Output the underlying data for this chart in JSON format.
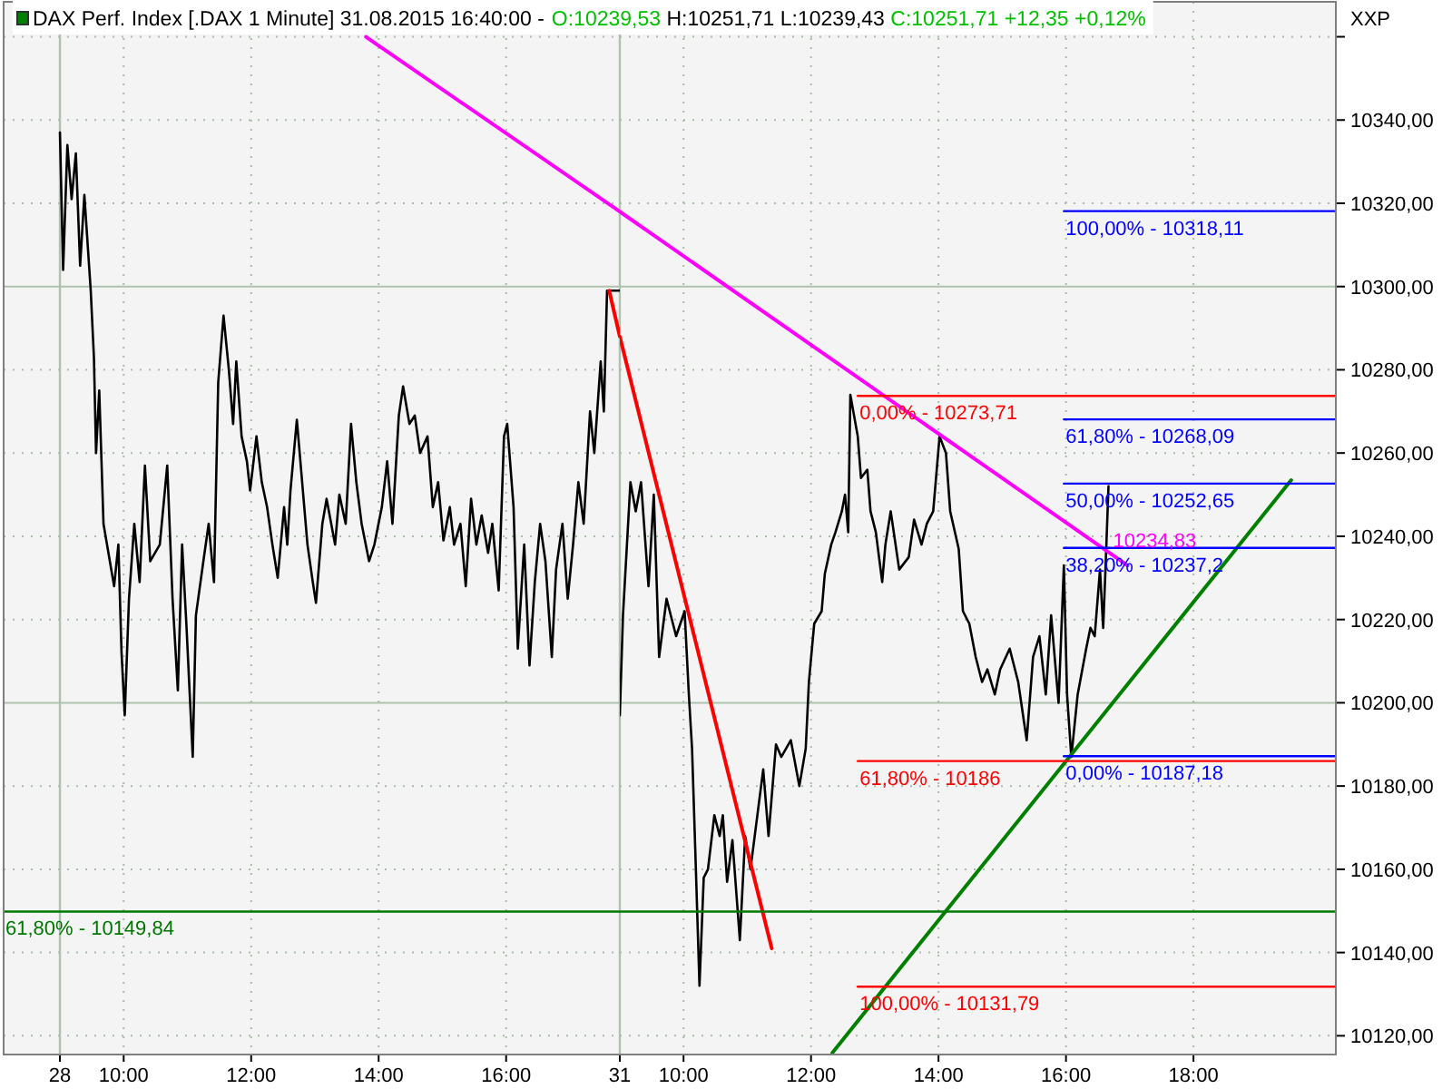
{
  "chart_data": [
    {
      "type": "other",
      "title": "DAX Perf. Index [.DAX 1 Minute] 31.08.2015 16:40:00 -",
      "subtitle": "O:10239,53 H:10251,71 L:10239,43 C:10251,71 +12,35 +0,12%"
    },
    {
      "type": "line",
      "xlim": [
        "2015-08-28T08:07",
        "2015-08-28T17:47"
      ],
      "ylim": [
        10115.5,
        10368.4
      ],
      "xticks": [
        {
          "value": "2015-08-28T09:00",
          "label": "28"
        },
        {
          "value": "2015-08-28T10:00",
          "label": "10:00"
        },
        {
          "value": "2015-08-28T12:00",
          "label": "12:00"
        },
        {
          "value": "2015-08-28T14:00",
          "label": "14:00"
        },
        {
          "value": "2015-08-28T16:00",
          "label": "16:00"
        }
      ],
      "yticks": [
        10120,
        10140,
        10160,
        10180,
        10200,
        10220,
        10240,
        10260,
        10280,
        10300,
        10320,
        10340,
        10360
      ],
      "tick_labels": "x",
      "grid": true,
      "ref_lines": [
        {
          "axis": "x",
          "value": "2015-08-28T09:00",
          "color": "#aec2ae"
        }
      ],
      "series": [
        {
          "color": "#000000",
          "x": [
            "2015-08-28T09:00",
            "2015-08-28T09:03",
            "2015-08-28T09:07",
            "2015-08-28T09:11",
            "2015-08-28T09:15",
            "2015-08-28T09:19",
            "2015-08-28T09:23",
            "2015-08-28T09:29",
            "2015-08-28T09:32",
            "2015-08-28T09:34",
            "2015-08-28T09:37",
            "2015-08-28T09:41",
            "2015-08-28T09:51",
            "2015-08-28T09:55",
            "2015-08-28T09:58",
            "2015-08-28T10:01",
            "2015-08-28T10:05",
            "2015-08-28T10:10",
            "2015-08-28T10:15",
            "2015-08-28T10:20",
            "2015-08-28T10:25",
            "2015-08-28T10:34",
            "2015-08-28T10:41",
            "2015-08-28T10:46",
            "2015-08-28T10:51",
            "2015-08-28T10:55",
            "2015-08-28T10:59",
            "2015-08-28T11:05",
            "2015-08-28T11:08",
            "2015-08-28T11:15",
            "2015-08-28T11:20",
            "2015-08-28T11:25",
            "2015-08-28T11:29",
            "2015-08-28T11:34",
            "2015-08-28T11:39",
            "2015-08-28T11:43",
            "2015-08-28T11:46",
            "2015-08-28T11:51",
            "2015-08-28T11:56",
            "2015-08-28T11:59",
            "2015-08-28T12:05",
            "2015-08-28T12:10",
            "2015-08-28T12:15",
            "2015-08-28T12:20",
            "2015-08-28T12:25",
            "2015-08-28T12:31",
            "2015-08-28T12:34",
            "2015-08-28T12:37",
            "2015-08-28T12:43",
            "2015-08-28T12:47",
            "2015-08-28T12:53",
            "2015-08-28T12:58",
            "2015-08-28T13:01",
            "2015-08-28T13:07",
            "2015-08-28T13:11",
            "2015-08-28T13:19",
            "2015-08-28T13:23",
            "2015-08-28T13:29",
            "2015-08-28T13:34",
            "2015-08-28T13:39",
            "2015-08-28T13:44",
            "2015-08-28T13:51",
            "2015-08-28T13:56",
            "2015-08-28T14:03",
            "2015-08-28T14:08",
            "2015-08-28T14:13",
            "2015-08-28T14:19",
            "2015-08-28T14:23",
            "2015-08-28T14:29",
            "2015-08-28T14:34",
            "2015-08-28T14:39",
            "2015-08-28T14:46",
            "2015-08-28T14:51",
            "2015-08-28T14:56",
            "2015-08-28T15:01",
            "2015-08-28T15:07",
            "2015-08-28T15:11",
            "2015-08-28T15:17",
            "2015-08-28T15:22",
            "2015-08-28T15:27",
            "2015-08-28T15:32",
            "2015-08-28T15:37",
            "2015-08-28T15:43",
            "2015-08-28T15:47",
            "2015-08-28T15:53",
            "2015-08-28T15:58",
            "2015-08-28T16:01",
            "2015-08-28T16:07",
            "2015-08-28T16:11",
            "2015-08-28T16:17",
            "2015-08-28T16:22",
            "2015-08-28T16:27",
            "2015-08-28T16:32",
            "2015-08-28T16:37",
            "2015-08-28T16:43",
            "2015-08-28T16:47",
            "2015-08-28T16:53",
            "2015-08-28T16:58",
            "2015-08-28T17:03",
            "2015-08-28T17:08",
            "2015-08-28T17:13",
            "2015-08-28T17:19",
            "2015-08-28T17:23",
            "2015-08-28T17:29",
            "2015-08-28T17:32",
            "2015-08-28T17:35",
            "2015-08-28T17:47"
          ],
          "values": [
            10337,
            10304,
            10334,
            10321,
            10332,
            10305,
            10322,
            10299,
            10283,
            10260,
            10275,
            10243,
            10228,
            10238,
            10212,
            10197,
            10225,
            10243,
            10229,
            10257,
            10234,
            10238,
            10257,
            10225,
            10203,
            10238,
            10219,
            10187,
            10221,
            10234,
            10243,
            10229,
            10277,
            10293,
            10280,
            10267,
            10282,
            10264,
            10258,
            10251,
            10264,
            10253,
            10247,
            10238,
            10230,
            10247,
            10238,
            10251,
            10268,
            10256,
            10238,
            10229,
            10224,
            10243,
            10249,
            10238,
            10250,
            10243,
            10267,
            10253,
            10243,
            10234,
            10238,
            10247,
            10258,
            10243,
            10269,
            10276,
            10267,
            10269,
            10260,
            10264,
            10247,
            10253,
            10239,
            10247,
            10238,
            10243,
            10228,
            10249,
            10238,
            10245,
            10236,
            10243,
            10227,
            10264,
            10267,
            10247,
            10213,
            10238,
            10209,
            10229,
            10243,
            10234,
            10211,
            10232,
            10243,
            10225,
            10238,
            10253,
            10243,
            10270,
            10260,
            10282,
            10270,
            10299,
            10299
          ]
        },
        {
          "color": "#ff00ff",
          "x": [
            "2015-08-28T13:48",
            "2015-08-28T17:47"
          ],
          "values": [
            10360,
            10318
          ]
        },
        {
          "color": "#ff0000",
          "x": [
            "2015-08-28T17:37",
            "2015-08-28T17:47"
          ],
          "values": [
            10299,
            10288
          ]
        },
        {
          "name": "61,80% - 10149,84",
          "color": "#007800",
          "x": [
            "2015-08-28T08:07",
            "2015-08-28T17:47"
          ],
          "values": [
            10149.84,
            10149.84
          ]
        }
      ]
    },
    {
      "type": "line",
      "ylabel": "XXP",
      "xlim": [
        "2015-08-31T09:00",
        "2015-08-31T20:14"
      ],
      "ylim": [
        10115.5,
        10368.4
      ],
      "xticks": [
        {
          "value": "2015-08-31T09:00",
          "label": "31"
        },
        {
          "value": "2015-08-31T10:00",
          "label": "10:00"
        },
        {
          "value": "2015-08-31T12:00",
          "label": "12:00"
        },
        {
          "value": "2015-08-31T14:00",
          "label": "14:00"
        },
        {
          "value": "2015-08-31T16:00",
          "label": "16:00"
        },
        {
          "value": "2015-08-31T18:00",
          "label": "18:00"
        }
      ],
      "yticks": [
        {
          "value": 10120,
          "label": "10120,00"
        },
        {
          "value": 10140,
          "label": "10140,00"
        },
        {
          "value": 10160,
          "label": "10160,00"
        },
        {
          "value": 10180,
          "label": "10180,00"
        },
        {
          "value": 10200,
          "label": "10200,00"
        },
        {
          "value": 10220,
          "label": "10220,00"
        },
        {
          "value": 10240,
          "label": "10240,00"
        },
        {
          "value": 10260,
          "label": "10260,00"
        },
        {
          "value": 10280,
          "label": "10280,00"
        },
        {
          "value": 10300,
          "label": "10300,00"
        },
        {
          "value": 10320,
          "label": "10320,00"
        },
        {
          "value": 10340,
          "label": "10340,00"
        },
        {
          "value": 10360,
          "label": null
        }
      ],
      "grid": true,
      "series": [
        {
          "color": "#000000",
          "x": [
            "2015-08-31T09:00",
            "2015-08-31T09:03",
            "2015-08-31T09:10",
            "2015-08-31T09:15",
            "2015-08-31T09:20",
            "2015-08-31T09:27",
            "2015-08-31T09:32",
            "2015-08-31T09:37",
            "2015-08-31T09:44",
            "2015-08-31T09:53",
            "2015-08-31T10:01",
            "2015-08-31T10:05",
            "2015-08-31T10:08",
            "2015-08-31T10:11",
            "2015-08-31T10:15",
            "2015-08-31T10:19",
            "2015-08-31T10:23",
            "2015-08-31T10:29",
            "2015-08-31T10:34",
            "2015-08-31T10:37",
            "2015-08-31T10:41",
            "2015-08-31T10:46",
            "2015-08-31T10:53",
            "2015-08-31T10:58",
            "2015-08-31T11:03",
            "2015-08-31T11:10",
            "2015-08-31T11:15",
            "2015-08-31T11:20",
            "2015-08-31T11:27",
            "2015-08-31T11:32",
            "2015-08-31T11:41",
            "2015-08-31T11:49",
            "2015-08-31T11:55",
            "2015-08-31T11:58",
            "2015-08-31T12:03",
            "2015-08-31T12:10",
            "2015-08-31T12:13",
            "2015-08-31T12:19",
            "2015-08-31T12:23",
            "2015-08-31T12:29",
            "2015-08-31T12:32",
            "2015-08-31T12:35",
            "2015-08-31T12:37",
            "2015-08-31T12:44",
            "2015-08-31T12:47",
            "2015-08-31T12:53",
            "2015-08-31T12:56",
            "2015-08-31T13:01",
            "2015-08-31T13:07",
            "2015-08-31T13:10",
            "2015-08-31T13:15",
            "2015-08-31T13:23",
            "2015-08-31T13:32",
            "2015-08-31T13:37",
            "2015-08-31T13:44",
            "2015-08-31T13:49",
            "2015-08-31T13:55",
            "2015-08-31T14:01",
            "2015-08-31T14:07",
            "2015-08-31T14:11",
            "2015-08-31T14:19",
            "2015-08-31T14:23",
            "2015-08-31T14:29",
            "2015-08-31T14:35",
            "2015-08-31T14:41",
            "2015-08-31T14:46",
            "2015-08-31T14:53",
            "2015-08-31T14:58",
            "2015-08-31T15:07",
            "2015-08-31T15:15",
            "2015-08-31T15:23",
            "2015-08-31T15:29",
            "2015-08-31T15:35",
            "2015-08-31T15:41",
            "2015-08-31T15:46",
            "2015-08-31T15:53",
            "2015-08-31T15:58",
            "2015-08-31T16:01",
            "2015-08-31T16:05",
            "2015-08-31T16:11",
            "2015-08-31T16:19",
            "2015-08-31T16:23",
            "2015-08-31T16:27",
            "2015-08-31T16:32",
            "2015-08-31T16:35",
            "2015-08-31T16:37",
            "2015-08-31T16:40"
          ],
          "values": [
            10197,
            10221,
            10253,
            10246,
            10253,
            10228,
            10250,
            10211,
            10225,
            10216,
            10222,
            10202,
            10189,
            10165,
            10132,
            10158,
            10160,
            10173,
            10168,
            10173,
            10157,
            10167,
            10143,
            10168,
            10160,
            10174,
            10184,
            10168,
            10190,
            10187,
            10191,
            10180,
            10189,
            10205,
            10219,
            10222,
            10231,
            10238,
            10241,
            10246,
            10250,
            10241,
            10274,
            10264,
            10254,
            10256,
            10246,
            10241,
            10229,
            10238,
            10246,
            10232,
            10235,
            10244,
            10238,
            10243,
            10246,
            10264,
            10260,
            10246,
            10237,
            10222,
            10219,
            10211,
            10205,
            10208,
            10202,
            10208,
            10213,
            10205,
            10191,
            10211,
            10216,
            10202,
            10221,
            10200,
            10233,
            10202,
            10187,
            10202,
            10213,
            10218,
            10216,
            10232,
            10218,
            10231,
            10252
          ]
        },
        {
          "name": "10234,83",
          "color": "#ff00ff",
          "x": [
            "2015-08-31T09:00",
            "2015-08-31T16:58"
          ],
          "values": [
            10318,
            10233
          ]
        },
        {
          "color": "#ff0000",
          "x": [
            "2015-08-31T09:00",
            "2015-08-31T11:23"
          ],
          "values": [
            10288,
            10141
          ]
        },
        {
          "color": "#008000",
          "x": [
            "2015-08-31T12:20",
            "2015-08-31T19:32"
          ],
          "values": [
            10115.9,
            10253.5
          ]
        },
        {
          "color": "#007800",
          "x": [
            "2015-08-31T09:00",
            "2015-08-31T20:14"
          ],
          "values": [
            10149.84,
            10149.84
          ]
        },
        {
          "name": "0,00% - 10273,71",
          "color": "#ff0000",
          "x": [
            "2015-08-31T12:44",
            "2015-08-31T20:14"
          ],
          "values": [
            10273.71,
            10273.71
          ]
        },
        {
          "name": "61,80% - 10186",
          "color": "#ff0000",
          "x": [
            "2015-08-31T12:44",
            "2015-08-31T20:14"
          ],
          "values": [
            10186,
            10186
          ]
        },
        {
          "name": "100,00% - 10131,79",
          "color": "#ff0000",
          "x": [
            "2015-08-31T12:44",
            "2015-08-31T20:14"
          ],
          "values": [
            10131.79,
            10131.79
          ]
        },
        {
          "name": "100,00% - 10318,11",
          "color": "#0000ff",
          "x": [
            "2015-08-31T15:58",
            "2015-08-31T20:14"
          ],
          "values": [
            10318.11,
            10318.11
          ]
        },
        {
          "name": "61,80% - 10268,09",
          "color": "#0000ff",
          "x": [
            "2015-08-31T15:58",
            "2015-08-31T20:14"
          ],
          "values": [
            10268.09,
            10268.09
          ]
        },
        {
          "name": "50,00% - 10252,65",
          "color": "#0000ff",
          "x": [
            "2015-08-31T15:58",
            "2015-08-31T20:14"
          ],
          "values": [
            10252.65,
            10252.65
          ]
        },
        {
          "name": "38,20% - 10237,2",
          "color": "#0000ff",
          "x": [
            "2015-08-31T15:58",
            "2015-08-31T20:14"
          ],
          "values": [
            10237.2,
            10237.2
          ]
        },
        {
          "name": "0,00% - 10187,18",
          "color": "#0000ff",
          "x": [
            "2015-08-31T15:58",
            "2015-08-31T20:14"
          ],
          "values": [
            10187.18,
            10187.18
          ]
        }
      ]
    }
  ]
}
